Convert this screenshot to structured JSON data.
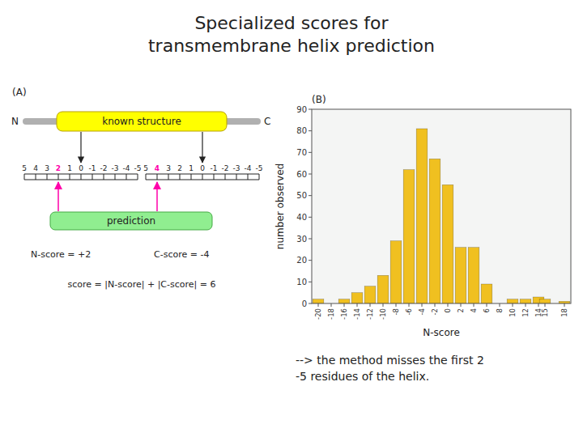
{
  "chart_data": [
    {
      "type": "bar",
      "title": "Specialized scores for\ntransmembrane helix prediction",
      "annotations": [
        "(B)",
        "--> the method misses the first 2\n-5 residues of the helix."
      ],
      "x": [
        -20,
        -18,
        -16,
        -14,
        -12,
        -10,
        -8,
        -6,
        -4,
        -2,
        0,
        2,
        4,
        6,
        8,
        10,
        12,
        14,
        15,
        18
      ],
      "values": [
        2,
        0,
        2,
        5,
        8,
        13,
        29,
        62,
        81,
        67,
        55,
        26,
        26,
        9,
        0,
        2,
        2,
        3,
        2,
        1
      ],
      "color": "#f0c020",
      "xlabel": "N-score",
      "ylabel": "number observed",
      "xlim": [
        -21,
        19
      ],
      "ylim": [
        0,
        90
      ],
      "xticks": [
        -20,
        -18,
        -16,
        -14,
        -12,
        -10,
        -8,
        -6,
        -4,
        -2,
        0,
        2,
        4,
        6,
        8,
        10,
        12,
        14,
        15,
        18
      ],
      "yticks": [
        0,
        10,
        20,
        30,
        40,
        50,
        60,
        70,
        80,
        90
      ],
      "grid": false
    },
    {
      "type": "diagram",
      "annotations": [
        "(A)",
        "N",
        "C",
        "known structure",
        "prediction",
        "N-score = +2",
        "C-score = -4",
        "score = |N-score| + |C-score| = 6"
      ],
      "colors": [
        "#ffff00",
        "#90ee90"
      ],
      "color": "#ff00aa",
      "rulers": [
        {
          "ticks": [
            5,
            4,
            3,
            2,
            1,
            0,
            -1,
            -2,
            -3,
            -4,
            -5
          ],
          "highlight": 2
        },
        {
          "ticks": [
            5,
            4,
            3,
            2,
            1,
            0,
            -1,
            -2,
            -3,
            -4,
            -5
          ],
          "highlight": 4
        }
      ]
    }
  ]
}
